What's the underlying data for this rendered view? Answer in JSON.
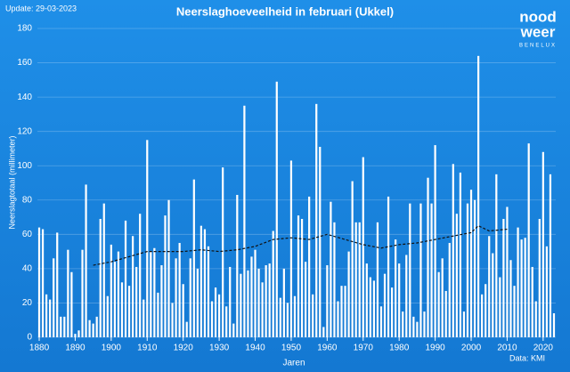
{
  "chart_data": {
    "type": "bar",
    "title": "Neerslaghoeveelheid in februari (Ukkel)",
    "update": "Update: 29-03-2023",
    "source": "Data: KMI",
    "logo": [
      "nood",
      "weer",
      "BENELUX"
    ],
    "x_label": "Jaren",
    "y_label": "Neerslagtotaal (millimeter)",
    "color": "#ffffff",
    "x": [
      1880,
      1881,
      1882,
      1883,
      1884,
      1885,
      1886,
      1887,
      1888,
      1889,
      1890,
      1891,
      1892,
      1893,
      1894,
      1895,
      1896,
      1897,
      1898,
      1899,
      1900,
      1901,
      1902,
      1903,
      1904,
      1905,
      1906,
      1907,
      1908,
      1909,
      1910,
      1911,
      1912,
      1913,
      1914,
      1915,
      1916,
      1917,
      1918,
      1919,
      1920,
      1921,
      1922,
      1923,
      1924,
      1925,
      1926,
      1927,
      1928,
      1929,
      1930,
      1931,
      1932,
      1933,
      1934,
      1935,
      1936,
      1937,
      1938,
      1939,
      1940,
      1941,
      1942,
      1943,
      1944,
      1945,
      1946,
      1947,
      1948,
      1949,
      1950,
      1951,
      1952,
      1953,
      1954,
      1955,
      1956,
      1957,
      1958,
      1959,
      1960,
      1961,
      1962,
      1963,
      1964,
      1965,
      1966,
      1967,
      1968,
      1969,
      1970,
      1971,
      1972,
      1973,
      1974,
      1975,
      1976,
      1977,
      1978,
      1979,
      1980,
      1981,
      1982,
      1983,
      1984,
      1985,
      1986,
      1987,
      1988,
      1989,
      1990,
      1991,
      1992,
      1993,
      1994,
      1995,
      1996,
      1997,
      1998,
      1999,
      2000,
      2001,
      2002,
      2003,
      2004,
      2005,
      2006,
      2007,
      2008,
      2009,
      2010,
      2011,
      2012,
      2013,
      2014,
      2015,
      2016,
      2017,
      2018,
      2019,
      2020,
      2021,
      2022,
      2023
    ],
    "values": [
      64,
      63,
      25,
      22,
      46,
      61,
      12,
      12,
      51,
      38,
      2,
      4,
      51,
      89,
      10,
      8,
      12,
      69,
      78,
      24,
      54,
      44,
      50,
      32,
      68,
      30,
      59,
      41,
      72,
      22,
      115,
      50,
      52,
      26,
      42,
      71,
      80,
      20,
      46,
      55,
      31,
      9,
      46,
      92,
      40,
      65,
      63,
      53,
      21,
      29,
      25,
      99,
      18,
      41,
      8,
      83,
      37,
      135,
      39,
      47,
      51,
      40,
      32,
      42,
      43,
      62,
      149,
      23,
      40,
      20,
      103,
      24,
      71,
      69,
      44,
      82,
      25,
      136,
      111,
      6,
      42,
      79,
      67,
      21,
      30,
      30,
      50,
      91,
      67,
      67,
      105,
      43,
      35,
      33,
      67,
      18,
      37,
      82,
      29,
      57,
      43,
      15,
      48,
      78,
      12,
      9,
      78,
      15,
      93,
      78,
      112,
      38,
      46,
      27,
      55,
      101,
      72,
      96,
      15,
      78,
      86,
      80,
      164,
      25,
      31,
      59,
      49,
      95,
      35,
      69,
      76,
      45,
      30,
      64,
      57,
      58,
      113,
      41,
      21,
      69,
      108,
      53,
      95,
      14
    ],
    "trend": {
      "color": "#111111",
      "x": [
        1895,
        1900,
        1905,
        1910,
        1915,
        1920,
        1925,
        1930,
        1935,
        1940,
        1945,
        1950,
        1955,
        1960,
        1965,
        1970,
        1975,
        1980,
        1985,
        1990,
        1995,
        2000,
        2002,
        2005,
        2010
      ],
      "values": [
        42,
        44,
        47,
        50,
        50,
        50,
        51,
        50,
        51,
        53,
        57,
        58,
        57,
        60,
        57,
        54,
        52,
        54,
        55,
        57,
        59,
        61,
        65,
        62,
        63
      ]
    },
    "xlim": [
      1879.5,
      2023.5
    ],
    "xticks": [
      1880,
      1890,
      1900,
      1910,
      1920,
      1930,
      1940,
      1950,
      1960,
      1970,
      1980,
      1990,
      2000,
      2010,
      2020
    ],
    "ylim": [
      0,
      180
    ],
    "yticks": [
      0,
      20,
      40,
      60,
      80,
      100,
      120,
      140,
      160,
      180
    ],
    "grid": true
  }
}
